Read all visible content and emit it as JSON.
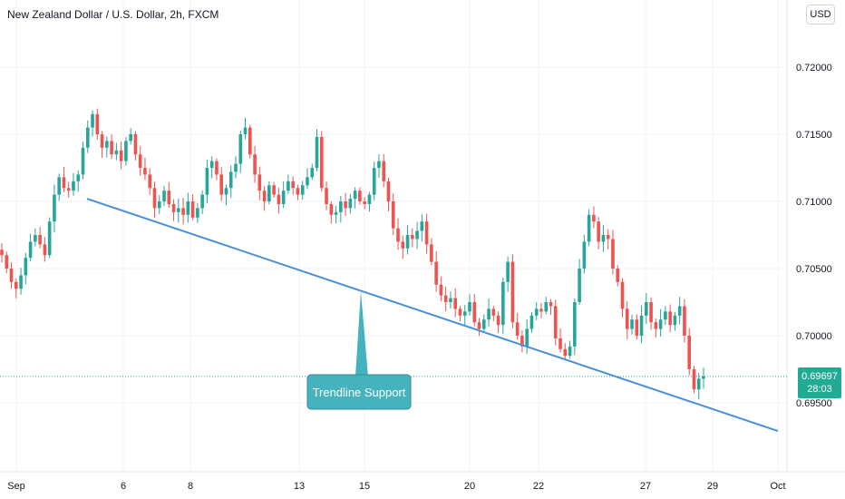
{
  "header": {
    "title": "New Zealand Dollar / U.S. Dollar, 2h, FXCM",
    "currency": "USD"
  },
  "last_price": {
    "value": "0.69697",
    "countdown": "28:03"
  },
  "annotation": {
    "label": "Trendline Support"
  },
  "colors": {
    "up": "#26a69a",
    "down": "#ef5350",
    "trendline": "#4a90d9",
    "callout": "#45b3bd",
    "last_price_line": "#22ab94",
    "grid": "#f0f3fa"
  },
  "chart_data": {
    "type": "candlestick",
    "symbol": "NZDUSD",
    "interval": "2h",
    "source": "FXCM",
    "ylim": [
      0.6915,
      0.7225
    ],
    "y_ticks": [
      "0.72000",
      "0.71500",
      "0.71000",
      "0.70500",
      "0.70000",
      "0.69500"
    ],
    "x_ticks": [
      "Sep",
      "6",
      "8",
      "13",
      "15",
      "20",
      "22",
      "27",
      "29",
      "Oct"
    ],
    "grid": true,
    "last_price": 0.69697,
    "trendline": {
      "from_date": "Sep 4",
      "from_price": 0.7102,
      "to_date": "Oct 1",
      "to_price": 0.6929
    },
    "price_path": [
      0.706,
      0.705,
      0.704,
      0.7035,
      0.7045,
      0.7058,
      0.707,
      0.7075,
      0.7068,
      0.706,
      0.7085,
      0.7105,
      0.7118,
      0.711,
      0.7108,
      0.7115,
      0.712,
      0.714,
      0.7155,
      0.7165,
      0.715,
      0.714,
      0.7145,
      0.7135,
      0.7138,
      0.713,
      0.7145,
      0.715,
      0.7135,
      0.7125,
      0.712,
      0.711,
      0.7095,
      0.71,
      0.7108,
      0.7098,
      0.7092,
      0.7095,
      0.709,
      0.71,
      0.7088,
      0.7095,
      0.7105,
      0.7125,
      0.713,
      0.712,
      0.7105,
      0.711,
      0.7122,
      0.7128,
      0.715,
      0.7155,
      0.7135,
      0.712,
      0.7108,
      0.71,
      0.7112,
      0.7105,
      0.7098,
      0.7108,
      0.7115,
      0.711,
      0.7105,
      0.7112,
      0.7118,
      0.7125,
      0.7148,
      0.711,
      0.7098,
      0.709,
      0.7092,
      0.71,
      0.7095,
      0.7102,
      0.7108,
      0.71,
      0.7098,
      0.7105,
      0.7125,
      0.713,
      0.7115,
      0.71,
      0.708,
      0.707,
      0.7065,
      0.7075,
      0.7072,
      0.7078,
      0.7085,
      0.7068,
      0.7055,
      0.7038,
      0.703,
      0.7025,
      0.7028,
      0.702,
      0.7015,
      0.7018,
      0.7025,
      0.701,
      0.7005,
      0.7012,
      0.702,
      0.7015,
      0.7008,
      0.704,
      0.7055,
      0.701,
      0.7,
      0.6992,
      0.7005,
      0.7015,
      0.702,
      0.7018,
      0.7025,
      0.7022,
      0.6998,
      0.699,
      0.6985,
      0.6992,
      0.7025,
      0.705,
      0.707,
      0.709,
      0.7085,
      0.707,
      0.7075,
      0.7072,
      0.705,
      0.704,
      0.702,
      0.7005,
      0.7012,
      0.7,
      0.7015,
      0.7025,
      0.701,
      0.7005,
      0.7012,
      0.7018,
      0.7008,
      0.7015,
      0.7022,
      0.7,
      0.6975,
      0.696,
      0.6968,
      0.69697
    ]
  }
}
